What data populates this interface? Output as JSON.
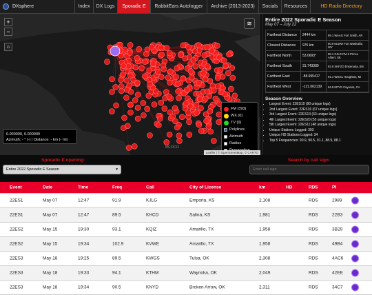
{
  "nav": {
    "logo": "DXsphere",
    "tabs": [
      "Index",
      "DX Logs",
      "Sporadic E",
      "RabbitEars Autologger",
      "Archive (2013-2023)",
      "Socials",
      "Resources",
      "HD Radio Directory"
    ]
  },
  "map": {
    "controls": [
      "+",
      "−"
    ],
    "legend": [
      {
        "label": "FM (393)",
        "color": "#ff2020"
      },
      {
        "label": "WX (0)",
        "color": "#ffe000"
      },
      {
        "label": "TV (0)",
        "color": "#22dd22"
      }
    ],
    "options": [
      {
        "label": "Polylines",
        "checked": true
      },
      {
        "label": "Azimuth",
        "checked": false
      },
      {
        "label": "Radius",
        "checked": false
      },
      {
        "label": "Propagation",
        "checked": false
      }
    ],
    "coords": "0.000000, 0.000000",
    "azimuth": "Azimuth: - ° (-) | Distance: - km (- mi)",
    "country_label": "MEXICO",
    "attribution": "Leaflet | © OpenStreetMap, © CARTO"
  },
  "panel": {
    "title": "Entire 2022 Sporadic E Season",
    "subtitle": "May 07 – July 22",
    "rows": [
      [
        "Farthest Distance",
        "2444 km",
        "99.1 WAAG Fort Smith, AR"
      ],
      [
        "Closest Distance",
        "975 km",
        "90.9 KLWW Fort Washakie, WY"
      ],
      [
        "Farthest North",
        "53.0693°",
        "88.1 CJLR-FM-3 Prince Albert, SK"
      ],
      [
        "Farthest South",
        "31.743389",
        "92.9 XHFZO Ensenada, BN"
      ],
      [
        "Farthest East",
        "-88.695417",
        "91.1 WGGL Houghton, MI"
      ],
      [
        "Farthest West",
        "-121.062139",
        "94.9 KPYG Cayucos, CA"
      ]
    ],
    "overview_title": "Season Overview",
    "overview": [
      "Largest Event: 22ES19 (90 unique logs)",
      "2nd Largest Event: 22ES16 (67 unique logs)",
      "3rd Largest Event: 22ES13 (63 unique logs)",
      "4th Largest Event: 22ES20 (55 unique logs)",
      "5th Largest Event: 22ES11 (48 unique logs)",
      "Unique Stations Logged: 393",
      "Unique HD Stations Logged: 34",
      "Top 5 Frequencies: 90.9, 90.5, 91.1, 88.9, 88.1"
    ]
  },
  "filters": {
    "opening_label": "Sporadic E opening:",
    "opening_value": "Entire 2022 Sporadic E Season",
    "search_label": "Search by call sign:",
    "search_placeholder": "Enter call sign"
  },
  "table": {
    "columns": [
      "Event",
      "Date",
      "Time",
      "Freq",
      "Call",
      "City of License",
      "km",
      "HD",
      "RDS",
      "PI"
    ],
    "rows": [
      {
        "event": "22ES1",
        "date": "May 07",
        "time": "12:47",
        "freq": "91.9",
        "call": "KJLG",
        "city": "Emporia, KS",
        "km": "2,108",
        "rds": "RDS",
        "pi": "2989"
      },
      {
        "event": "22ES1",
        "date": "May 07",
        "time": "12:47",
        "freq": "89.5",
        "call": "KHCD",
        "city": "Salina, KS",
        "km": "1,981",
        "rds": "RDS",
        "pi": "22B3"
      },
      {
        "event": "22ES2",
        "date": "May 15",
        "time": "19:30",
        "freq": "93.1",
        "call": "KQIZ",
        "city": "Amarillo, TX",
        "km": "1,958",
        "rds": "RDS",
        "pi": "3B29"
      },
      {
        "event": "22ES2",
        "date": "May 15",
        "time": "19:34",
        "freq": "102.9",
        "call": "KVWE",
        "city": "Amarillo, TX",
        "km": "1,958",
        "rds": "RDS",
        "pi": "49B4"
      },
      {
        "event": "22ES3",
        "date": "May 18",
        "time": "19:25",
        "freq": "89.5",
        "call": "KWGS",
        "city": "Tulsa, OK",
        "km": "2,308",
        "rds": "RDS",
        "pi": "4AC6"
      },
      {
        "event": "22ES3",
        "date": "May 18",
        "time": "19:33",
        "freq": "94.1",
        "call": "KTHM",
        "city": "Waynoka, OK",
        "km": "2,049",
        "rds": "RDS",
        "pi": "42EE"
      },
      {
        "event": "22ES3",
        "date": "May 18",
        "time": "19:34",
        "freq": "90.5",
        "call": "KNYD",
        "city": "Broken Arrow, OK",
        "km": "2,311",
        "rds": "RDS",
        "pi": "34C7"
      }
    ]
  }
}
